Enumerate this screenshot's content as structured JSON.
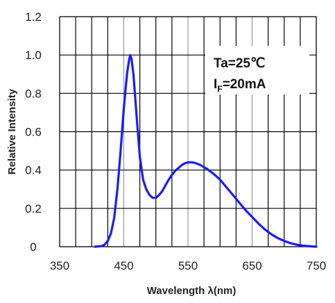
{
  "chart_data": {
    "type": "line",
    "title": "",
    "xlabel": "Wavelength λ(nm)",
    "ylabel": "Relative Intensity",
    "xlim": [
      350,
      750
    ],
    "ylim": [
      0,
      1.2
    ],
    "x_ticks": [
      "350",
      "450",
      "550",
      "650",
      "750"
    ],
    "y_ticks": [
      "0",
      "0.2",
      "0.4",
      "0.6",
      "0.8",
      "1.0",
      "1.2"
    ],
    "x_tick_values": [
      350,
      450,
      550,
      650,
      750
    ],
    "y_tick_values": [
      0,
      0.2,
      0.4,
      0.6,
      0.8,
      1.0,
      1.2
    ],
    "grid": true,
    "line_color": "#1a1aff",
    "annotation": {
      "line1": "Ta=25℃",
      "line2_prefix": "I",
      "line2_sub": "F",
      "line2_suffix": "=20mA"
    },
    "series": [
      {
        "x": [
          405,
          415,
          420,
          425,
          430,
          435,
          440,
          445,
          450,
          455,
          458,
          460,
          462,
          465,
          470,
          475,
          480,
          485,
          490,
          495,
          500,
          505,
          510,
          515,
          520,
          525,
          530,
          535,
          540,
          545,
          550,
          555,
          560,
          565,
          570,
          580,
          590,
          600,
          610,
          620,
          630,
          640,
          650,
          660,
          670,
          680,
          690,
          700,
          710,
          720,
          730,
          740,
          750
        ],
        "y": [
          0.0,
          0.003,
          0.01,
          0.03,
          0.07,
          0.15,
          0.3,
          0.5,
          0.72,
          0.9,
          0.97,
          1.0,
          0.98,
          0.9,
          0.68,
          0.47,
          0.35,
          0.3,
          0.27,
          0.255,
          0.255,
          0.27,
          0.29,
          0.32,
          0.35,
          0.375,
          0.395,
          0.41,
          0.425,
          0.435,
          0.44,
          0.44,
          0.438,
          0.432,
          0.425,
          0.405,
          0.38,
          0.35,
          0.31,
          0.27,
          0.23,
          0.19,
          0.155,
          0.12,
          0.09,
          0.065,
          0.045,
          0.03,
          0.018,
          0.01,
          0.005,
          0.002,
          0.0
        ]
      }
    ]
  }
}
